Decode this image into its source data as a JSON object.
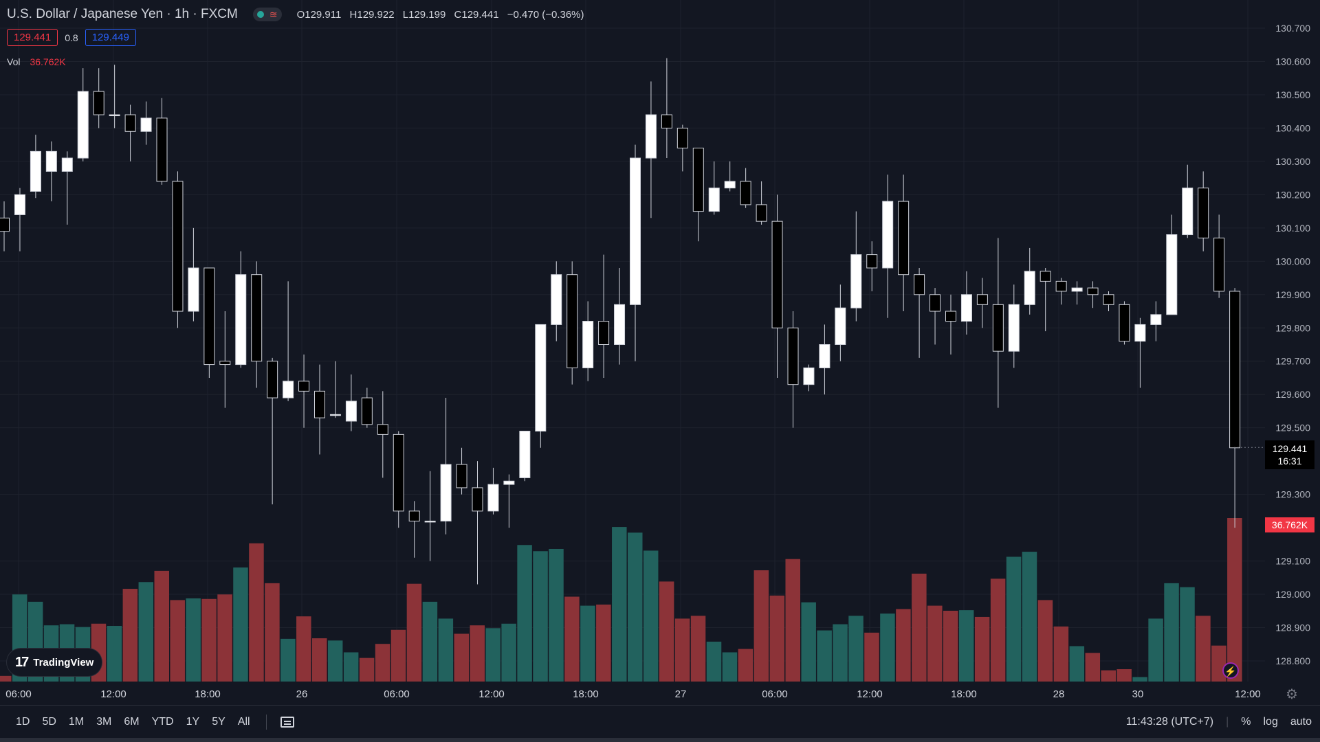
{
  "header": {
    "symbol": "U.S. Dollar / Japanese Yen · 1h · FXCM",
    "ohlc": {
      "o_label": "O",
      "o": "129.911",
      "h_label": "H",
      "h": "129.922",
      "l_label": "L",
      "l": "129.199",
      "c_label": "C",
      "c": "129.441",
      "change": "−0.470 (−0.36%)"
    },
    "sell_price": "129.441",
    "spread": "0.8",
    "buy_price": "129.449",
    "vol_label": "Vol",
    "vol_value": "36.762K"
  },
  "price_badge": {
    "price": "129.441",
    "countdown": "16:31"
  },
  "volume_badge": "36.762K",
  "logo_text": "TradingView",
  "ranges": [
    "1D",
    "5D",
    "1M",
    "3M",
    "6M",
    "YTD",
    "1Y",
    "5Y",
    "All"
  ],
  "bottom_right": {
    "time": "11:43:28 (UTC+7)",
    "percent": "%",
    "log": "log",
    "auto": "auto"
  },
  "colors": {
    "up_volume": "#22625e",
    "down_volume": "#8c3338",
    "candle_up": "#ffffff",
    "candle_down": "#000000",
    "wick": "#d1d4dc",
    "background": "#131722"
  },
  "chart_data": {
    "type": "candlestick",
    "y_ticks": [
      "130.700",
      "130.600",
      "130.500",
      "130.400",
      "130.300",
      "130.200",
      "130.100",
      "130.000",
      "129.900",
      "129.800",
      "129.700",
      "129.600",
      "129.500",
      "129.300",
      "129.100",
      "129.000",
      "128.900",
      "128.800"
    ],
    "x_ticks": [
      "06:00",
      "12:00",
      "18:00",
      "26",
      "06:00",
      "12:00",
      "18:00",
      "27",
      "06:00",
      "12:00",
      "18:00",
      "28",
      "30",
      "12:00"
    ],
    "ylim": [
      128.74,
      130.76
    ],
    "candles": [
      {
        "o": 130.13,
        "h": 130.18,
        "l": 130.03,
        "c": 130.09
      },
      {
        "o": 130.14,
        "h": 130.22,
        "l": 130.03,
        "c": 130.2
      },
      {
        "o": 130.21,
        "h": 130.38,
        "l": 130.19,
        "c": 130.33
      },
      {
        "o": 130.27,
        "h": 130.36,
        "l": 130.18,
        "c": 130.33
      },
      {
        "o": 130.27,
        "h": 130.33,
        "l": 130.11,
        "c": 130.31
      },
      {
        "o": 130.31,
        "h": 130.58,
        "l": 130.3,
        "c": 130.51
      },
      {
        "o": 130.51,
        "h": 130.58,
        "l": 130.4,
        "c": 130.44
      },
      {
        "o": 130.44,
        "h": 130.59,
        "l": 130.4,
        "c": 130.44
      },
      {
        "o": 130.44,
        "h": 130.47,
        "l": 130.3,
        "c": 130.39
      },
      {
        "o": 130.39,
        "h": 130.48,
        "l": 130.35,
        "c": 130.43
      },
      {
        "o": 130.43,
        "h": 130.49,
        "l": 130.23,
        "c": 130.24
      },
      {
        "o": 130.24,
        "h": 130.27,
        "l": 129.8,
        "c": 129.85
      },
      {
        "o": 129.85,
        "h": 130.1,
        "l": 129.82,
        "c": 129.98
      },
      {
        "o": 129.98,
        "h": 129.98,
        "l": 129.65,
        "c": 129.69
      },
      {
        "o": 129.7,
        "h": 129.85,
        "l": 129.56,
        "c": 129.69
      },
      {
        "o": 129.69,
        "h": 130.03,
        "l": 129.68,
        "c": 129.96
      },
      {
        "o": 129.96,
        "h": 130.0,
        "l": 129.62,
        "c": 129.7
      },
      {
        "o": 129.7,
        "h": 129.71,
        "l": 129.27,
        "c": 129.59
      },
      {
        "o": 129.59,
        "h": 129.94,
        "l": 129.58,
        "c": 129.64
      },
      {
        "o": 129.64,
        "h": 129.72,
        "l": 129.5,
        "c": 129.61
      },
      {
        "o": 129.61,
        "h": 129.69,
        "l": 129.42,
        "c": 129.53
      },
      {
        "o": 129.54,
        "h": 129.7,
        "l": 129.53,
        "c": 129.54
      },
      {
        "o": 129.52,
        "h": 129.66,
        "l": 129.49,
        "c": 129.58
      },
      {
        "o": 129.59,
        "h": 129.62,
        "l": 129.5,
        "c": 129.51
      },
      {
        "o": 129.51,
        "h": 129.61,
        "l": 129.35,
        "c": 129.48
      },
      {
        "o": 129.48,
        "h": 129.49,
        "l": 129.2,
        "c": 129.25
      },
      {
        "o": 129.25,
        "h": 129.28,
        "l": 129.11,
        "c": 129.22
      },
      {
        "o": 129.22,
        "h": 129.37,
        "l": 129.1,
        "c": 129.22
      },
      {
        "o": 129.22,
        "h": 129.59,
        "l": 129.18,
        "c": 129.39
      },
      {
        "o": 129.39,
        "h": 129.44,
        "l": 129.3,
        "c": 129.32
      },
      {
        "o": 129.32,
        "h": 129.4,
        "l": 129.03,
        "c": 129.25
      },
      {
        "o": 129.25,
        "h": 129.38,
        "l": 129.24,
        "c": 129.33
      },
      {
        "o": 129.33,
        "h": 129.36,
        "l": 129.2,
        "c": 129.34
      },
      {
        "o": 129.35,
        "h": 129.49,
        "l": 129.34,
        "c": 129.49
      },
      {
        "o": 129.49,
        "h": 129.81,
        "l": 129.44,
        "c": 129.81
      },
      {
        "o": 129.81,
        "h": 130.0,
        "l": 129.76,
        "c": 129.96
      },
      {
        "o": 129.96,
        "h": 130.0,
        "l": 129.63,
        "c": 129.68
      },
      {
        "o": 129.68,
        "h": 129.88,
        "l": 129.64,
        "c": 129.82
      },
      {
        "o": 129.82,
        "h": 130.02,
        "l": 129.65,
        "c": 129.75
      },
      {
        "o": 129.75,
        "h": 129.98,
        "l": 129.69,
        "c": 129.87
      },
      {
        "o": 129.87,
        "h": 130.35,
        "l": 129.7,
        "c": 130.31
      },
      {
        "o": 130.31,
        "h": 130.54,
        "l": 130.13,
        "c": 130.44
      },
      {
        "o": 130.44,
        "h": 130.61,
        "l": 130.31,
        "c": 130.4
      },
      {
        "o": 130.4,
        "h": 130.41,
        "l": 130.27,
        "c": 130.34
      },
      {
        "o": 130.34,
        "h": 130.34,
        "l": 130.06,
        "c": 130.15
      },
      {
        "o": 130.15,
        "h": 130.3,
        "l": 130.14,
        "c": 130.22
      },
      {
        "o": 130.22,
        "h": 130.3,
        "l": 130.21,
        "c": 130.24
      },
      {
        "o": 130.24,
        "h": 130.28,
        "l": 130.16,
        "c": 130.17
      },
      {
        "o": 130.17,
        "h": 130.24,
        "l": 130.11,
        "c": 130.12
      },
      {
        "o": 130.12,
        "h": 130.2,
        "l": 129.65,
        "c": 129.8
      },
      {
        "o": 129.8,
        "h": 129.85,
        "l": 129.5,
        "c": 129.63
      },
      {
        "o": 129.63,
        "h": 129.69,
        "l": 129.61,
        "c": 129.68
      },
      {
        "o": 129.68,
        "h": 129.81,
        "l": 129.6,
        "c": 129.75
      },
      {
        "o": 129.75,
        "h": 129.93,
        "l": 129.7,
        "c": 129.86
      },
      {
        "o": 129.86,
        "h": 130.15,
        "l": 129.82,
        "c": 130.02
      },
      {
        "o": 130.02,
        "h": 130.06,
        "l": 129.91,
        "c": 129.98
      },
      {
        "o": 129.98,
        "h": 130.26,
        "l": 129.83,
        "c": 130.18
      },
      {
        "o": 130.18,
        "h": 130.26,
        "l": 129.85,
        "c": 129.96
      },
      {
        "o": 129.96,
        "h": 129.98,
        "l": 129.71,
        "c": 129.9
      },
      {
        "o": 129.9,
        "h": 129.92,
        "l": 129.75,
        "c": 129.85
      },
      {
        "o": 129.85,
        "h": 129.9,
        "l": 129.72,
        "c": 129.82
      },
      {
        "o": 129.82,
        "h": 129.97,
        "l": 129.78,
        "c": 129.9
      },
      {
        "o": 129.9,
        "h": 129.95,
        "l": 129.8,
        "c": 129.87
      },
      {
        "o": 129.87,
        "h": 130.07,
        "l": 129.56,
        "c": 129.73
      },
      {
        "o": 129.73,
        "h": 129.93,
        "l": 129.68,
        "c": 129.87
      },
      {
        "o": 129.87,
        "h": 130.04,
        "l": 129.84,
        "c": 129.97
      },
      {
        "o": 129.97,
        "h": 129.98,
        "l": 129.79,
        "c": 129.94
      },
      {
        "o": 129.94,
        "h": 129.95,
        "l": 129.87,
        "c": 129.91
      },
      {
        "o": 129.91,
        "h": 129.94,
        "l": 129.87,
        "c": 129.92
      },
      {
        "o": 129.92,
        "h": 129.94,
        "l": 129.86,
        "c": 129.9
      },
      {
        "o": 129.9,
        "h": 129.91,
        "l": 129.85,
        "c": 129.87
      },
      {
        "o": 129.87,
        "h": 129.88,
        "l": 129.75,
        "c": 129.76
      },
      {
        "o": 129.76,
        "h": 129.83,
        "l": 129.62,
        "c": 129.81
      },
      {
        "o": 129.81,
        "h": 129.88,
        "l": 129.76,
        "c": 129.84
      },
      {
        "o": 129.84,
        "h": 130.14,
        "l": 129.84,
        "c": 130.08
      },
      {
        "o": 130.08,
        "h": 130.29,
        "l": 130.07,
        "c": 130.22
      },
      {
        "o": 130.22,
        "h": 130.27,
        "l": 130.03,
        "c": 130.07
      },
      {
        "o": 130.07,
        "h": 130.14,
        "l": 129.89,
        "c": 129.91
      },
      {
        "o": 129.91,
        "h": 129.92,
        "l": 129.2,
        "c": 129.44
      }
    ],
    "volume_ylim": [
      0,
      3.2
    ],
    "volume": [
      0.1,
      1.55,
      1.42,
      1.0,
      1.02,
      0.97,
      1.03,
      0.99,
      1.65,
      1.77,
      1.97,
      1.45,
      1.48,
      1.47,
      1.55,
      2.03,
      2.46,
      1.75,
      0.76,
      1.16,
      0.77,
      0.73,
      0.52,
      0.42,
      0.67,
      0.92,
      1.74,
      1.42,
      1.12,
      0.85,
      1.0,
      0.95,
      1.03,
      2.43,
      2.32,
      2.36,
      1.51,
      1.35,
      1.37,
      2.75,
      2.65,
      2.33,
      1.78,
      1.12,
      1.17,
      0.71,
      0.52,
      0.58,
      1.98,
      1.53,
      2.18,
      1.41,
      0.91,
      1.02,
      1.17,
      0.87,
      1.21,
      1.29,
      1.92,
      1.35,
      1.26,
      1.27,
      1.15,
      1.83,
      2.22,
      2.31,
      1.45,
      0.98,
      0.63,
      0.51,
      0.2,
      0.22,
      0.08,
      1.12,
      1.75,
      1.68,
      1.17,
      0.64,
      2.91
    ]
  }
}
